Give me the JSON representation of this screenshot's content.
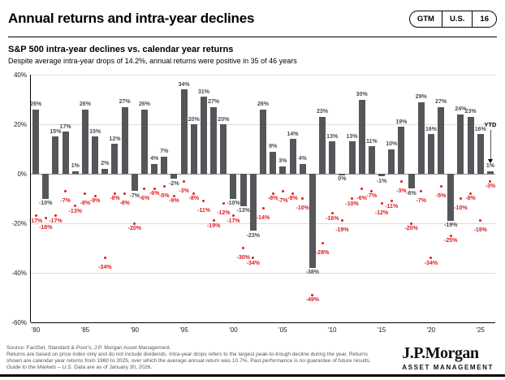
{
  "header": {
    "title": "Annual returns and intra-year declines",
    "badge": {
      "gtm": "GTM",
      "region": "U.S.",
      "page": "16"
    }
  },
  "chart_data": {
    "type": "bar",
    "title": "S&P 500 intra-year declines vs. calendar year returns",
    "subtitle": "Despite average intra-year drops of 14.2%, annual returns were positive in 35 of 46 years",
    "x": [
      1980,
      1981,
      1982,
      1983,
      1984,
      1985,
      1986,
      1987,
      1988,
      1989,
      1990,
      1991,
      1992,
      1993,
      1994,
      1995,
      1996,
      1997,
      1998,
      1999,
      2000,
      2001,
      2002,
      2003,
      2004,
      2005,
      2006,
      2007,
      2008,
      2009,
      2010,
      2011,
      2012,
      2013,
      2014,
      2015,
      2016,
      2017,
      2018,
      2019,
      2020,
      2021,
      2022,
      2023,
      2024,
      2025,
      2026
    ],
    "series": [
      {
        "name": "Calendar year return",
        "values": [
          26,
          -10,
          15,
          17,
          1,
          26,
          15,
          2,
          12,
          27,
          -7,
          26,
          4,
          7,
          -2,
          34,
          20,
          31,
          27,
          20,
          -10,
          -13,
          -23,
          26,
          9,
          3,
          14,
          4,
          -38,
          23,
          13,
          0,
          13,
          30,
          11,
          -1,
          10,
          19,
          -6,
          29,
          16,
          27,
          -19,
          24,
          23,
          16,
          1
        ]
      },
      {
        "name": "Intra-year decline",
        "values": [
          -17,
          -18,
          -17,
          -7,
          -13,
          -8,
          -9,
          -34,
          -8,
          -8,
          -20,
          -6,
          -6,
          -5,
          -9,
          -3,
          -8,
          -11,
          -19,
          -12,
          -17,
          -30,
          -34,
          -14,
          -8,
          -7,
          -8,
          -10,
          -49,
          -28,
          -16,
          -19,
          -10,
          -6,
          -7,
          -12,
          -11,
          -3,
          -20,
          -7,
          -34,
          -5,
          -25,
          -10,
          -8,
          -19,
          -3
        ]
      }
    ],
    "ylim": [
      -60,
      40
    ],
    "grid": true,
    "legend_position": "none",
    "y_ticks": [
      {
        "v": 40,
        "label": "40%"
      },
      {
        "v": 20,
        "label": "20%"
      },
      {
        "v": 0,
        "label": "0%"
      },
      {
        "v": -20,
        "label": "-20%"
      },
      {
        "v": -40,
        "label": "-40%"
      },
      {
        "v": -60,
        "label": "-60%"
      }
    ],
    "xtick_labels": [
      "'80",
      "'85",
      "'90",
      "'95",
      "'00",
      "'05",
      "'10",
      "'15",
      "'20",
      "'25"
    ],
    "ytd_label": "YTD",
    "colors": {
      "bar": "#54565a",
      "dot": "#dd1d21",
      "bar_label": "#4a4c50",
      "dot_label": "#dd1d21"
    }
  },
  "footer": {
    "lines": [
      "Source: FactSet, Standard & Poor's, J.P. Morgan Asset Management.",
      "Returns are based on price index only and do not include dividends. Intra-year drops refers to the largest peak-to-trough decline during the year. Returns",
      "shown are calendar year returns from 1980 to 2025, over which the average annual return was 10.7%. Past performance is no guarantee of future results."
    ],
    "gtm_italic": "Guide to the Markets – U.S.",
    "asof": " Data are as of January 30, 2026."
  },
  "logo": {
    "name": "J.P.Morgan",
    "sub": "ASSET MANAGEMENT"
  }
}
